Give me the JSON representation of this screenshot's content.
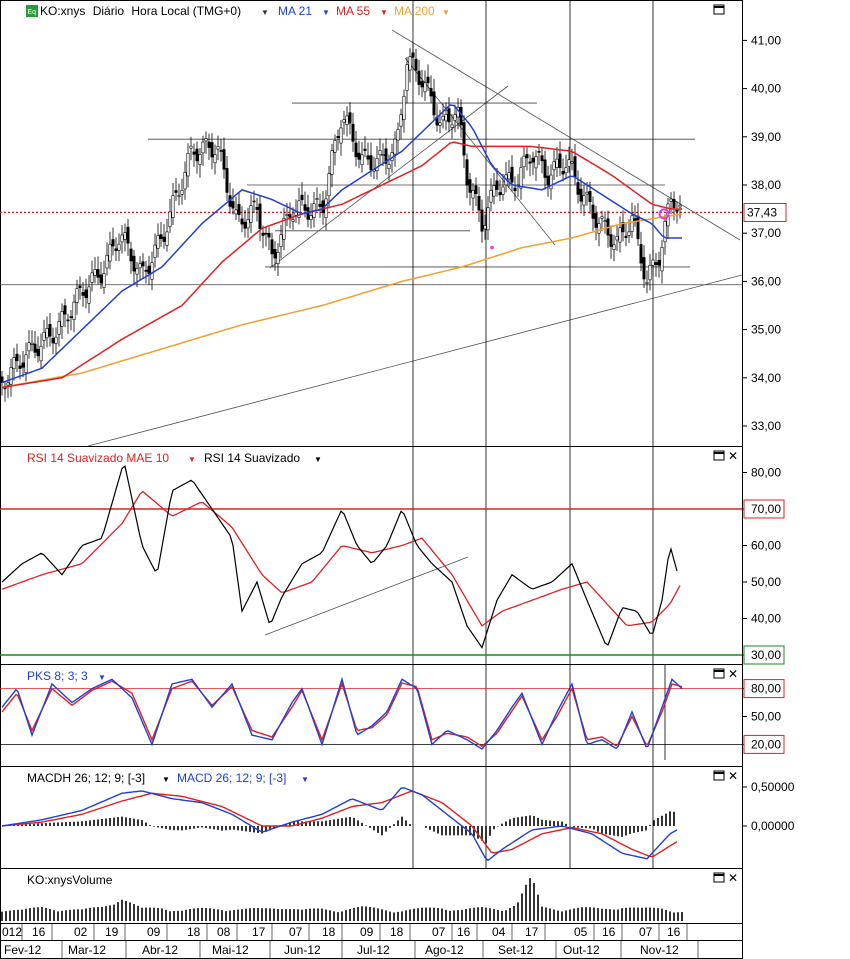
{
  "price_panel": {
    "symbol": "KO:xnys",
    "interval": "Diário",
    "timezone": "Hora Local (TMG+0)",
    "ma21": "MA 21",
    "ma55": "MA 55",
    "ma200": "MA 200",
    "last_price": "37,43",
    "y_ticks": [
      "41,00",
      "40,00",
      "39,00",
      "38,00",
      "37,00",
      "36,00",
      "35,00",
      "34,00",
      "33,00"
    ]
  },
  "rsi_panel": {
    "label_mae": "RSI 14 Suavizado MAE 10",
    "label_rsi": "RSI 14 Suavizado",
    "level_high": "70,00",
    "level_low": "30,00",
    "y_ticks": [
      "80,00",
      "70,00",
      "60,00",
      "50,00",
      "40,00",
      "30,00"
    ]
  },
  "pks_panel": {
    "label": "PKS 8; 3; 3",
    "level_high": "80,00",
    "level_mid": "50,00",
    "level_low": "20,00"
  },
  "macd_panel": {
    "label_hist": "MACDH 26; 12; 9; [-3]",
    "label_macd": "MACD 26; 12; 9; [-3]",
    "y_ticks": [
      "0,50000",
      "0,00000"
    ]
  },
  "volume_panel": {
    "label": "KO:xnysVolume"
  },
  "axis": {
    "days": [
      "012",
      "16",
      "02",
      "19",
      "09",
      "18",
      "08",
      "17",
      "07",
      "18",
      "09",
      "18",
      "07",
      "16",
      "04",
      "17",
      "05",
      "16",
      "07",
      "16"
    ],
    "months": [
      "Fev-12",
      "Mar-12",
      "Abr-12",
      "Mai-12",
      "Jun-12",
      "Jul-12",
      "Ago-12",
      "Set-12",
      "Out-12",
      "Nov-12"
    ]
  },
  "colors": {
    "ma21": "#1f3fd6",
    "ma55": "#e02020",
    "ma200": "#f0a030",
    "rsi": "#000000",
    "rsi_mae": "#e02020",
    "level_high": "#e02020",
    "level_low": "#1a8a1a"
  },
  "icons": {
    "window_icon": "maximize-icon",
    "close_icon": "close-icon",
    "dropdown_icon": "triangle-down-icon"
  },
  "chart_data": {
    "type": "line",
    "title": "",
    "x_range": [
      "Fev-12",
      "Nov-12"
    ],
    "price_range": [
      32.6,
      41.6
    ],
    "last_price": 37.43,
    "anchors": {
      "close": [
        [
          0,
          33.9
        ],
        [
          20,
          34.4
        ],
        [
          55,
          35.0
        ],
        [
          80,
          35.8
        ],
        [
          100,
          36.2
        ],
        [
          118,
          37.0
        ],
        [
          140,
          36.1
        ],
        [
          160,
          36.9
        ],
        [
          190,
          38.7
        ],
        [
          215,
          38.8
        ],
        [
          235,
          37.2
        ],
        [
          255,
          37.5
        ],
        [
          270,
          36.5
        ],
        [
          290,
          37.5
        ],
        [
          320,
          37.5
        ],
        [
          340,
          39.5
        ],
        [
          360,
          38.5
        ],
        [
          380,
          38.5
        ],
        [
          395,
          38.8
        ],
        [
          405,
          40.6
        ],
        [
          420,
          40.2
        ],
        [
          440,
          39.2
        ],
        [
          455,
          39.6
        ],
        [
          465,
          38.2
        ],
        [
          480,
          37.2
        ],
        [
          495,
          38.0
        ],
        [
          515,
          38.1
        ],
        [
          530,
          38.7
        ],
        [
          545,
          38.2
        ],
        [
          565,
          38.5
        ],
        [
          580,
          37.8
        ],
        [
          598,
          37.2
        ],
        [
          615,
          36.8
        ],
        [
          630,
          37.3
        ],
        [
          645,
          36.0
        ],
        [
          658,
          36.6
        ],
        [
          670,
          37.8
        ],
        [
          680,
          37.43
        ]
      ],
      "ma21": [
        [
          0,
          33.9
        ],
        [
          40,
          34.2
        ],
        [
          80,
          35.0
        ],
        [
          120,
          35.8
        ],
        [
          160,
          36.3
        ],
        [
          200,
          37.2
        ],
        [
          240,
          37.9
        ],
        [
          270,
          37.7
        ],
        [
          300,
          37.4
        ],
        [
          320,
          37.5
        ],
        [
          340,
          37.9
        ],
        [
          370,
          38.3
        ],
        [
          400,
          38.7
        ],
        [
          430,
          39.3
        ],
        [
          450,
          39.7
        ],
        [
          470,
          39.2
        ],
        [
          490,
          38.4
        ],
        [
          510,
          38.0
        ],
        [
          540,
          37.9
        ],
        [
          570,
          38.2
        ],
        [
          600,
          37.8
        ],
        [
          630,
          37.4
        ],
        [
          650,
          37.2
        ],
        [
          662,
          36.9
        ],
        [
          680,
          36.9
        ]
      ],
      "ma55": [
        [
          0,
          33.8
        ],
        [
          60,
          34.0
        ],
        [
          120,
          34.8
        ],
        [
          180,
          35.5
        ],
        [
          220,
          36.4
        ],
        [
          260,
          37.1
        ],
        [
          300,
          37.4
        ],
        [
          340,
          37.6
        ],
        [
          380,
          38.0
        ],
        [
          420,
          38.4
        ],
        [
          450,
          38.9
        ],
        [
          470,
          38.8
        ],
        [
          500,
          38.8
        ],
        [
          530,
          38.8
        ],
        [
          570,
          38.7
        ],
        [
          610,
          38.2
        ],
        [
          650,
          37.6
        ],
        [
          670,
          37.5
        ],
        [
          680,
          37.5
        ]
      ],
      "ma200": [
        [
          0,
          33.8
        ],
        [
          80,
          34.1
        ],
        [
          160,
          34.6
        ],
        [
          240,
          35.1
        ],
        [
          320,
          35.5
        ],
        [
          400,
          36.0
        ],
        [
          460,
          36.3
        ],
        [
          520,
          36.7
        ],
        [
          570,
          36.9
        ],
        [
          620,
          37.2
        ],
        [
          680,
          37.4
        ]
      ],
      "rsi": [
        [
          0,
          50
        ],
        [
          20,
          55
        ],
        [
          40,
          58
        ],
        [
          60,
          52
        ],
        [
          80,
          60
        ],
        [
          100,
          62
        ],
        [
          122,
          83
        ],
        [
          140,
          60
        ],
        [
          155,
          52
        ],
        [
          170,
          75
        ],
        [
          190,
          78
        ],
        [
          210,
          70
        ],
        [
          230,
          62
        ],
        [
          240,
          42
        ],
        [
          255,
          50
        ],
        [
          268,
          38
        ],
        [
          280,
          46
        ],
        [
          300,
          55
        ],
        [
          320,
          58
        ],
        [
          340,
          70
        ],
        [
          355,
          60
        ],
        [
          370,
          55
        ],
        [
          385,
          60
        ],
        [
          400,
          70
        ],
        [
          415,
          60
        ],
        [
          430,
          55
        ],
        [
          450,
          50
        ],
        [
          465,
          38
        ],
        [
          480,
          32
        ],
        [
          495,
          45
        ],
        [
          510,
          52
        ],
        [
          530,
          48
        ],
        [
          550,
          50
        ],
        [
          570,
          55
        ],
        [
          585,
          45
        ],
        [
          605,
          32
        ],
        [
          620,
          43
        ],
        [
          635,
          42
        ],
        [
          650,
          35
        ],
        [
          660,
          45
        ],
        [
          668,
          60
        ],
        [
          675,
          53
        ]
      ],
      "rsi_mae": [
        [
          0,
          48
        ],
        [
          40,
          52
        ],
        [
          80,
          55
        ],
        [
          120,
          66
        ],
        [
          140,
          75
        ],
        [
          170,
          68
        ],
        [
          200,
          72
        ],
        [
          230,
          65
        ],
        [
          260,
          52
        ],
        [
          280,
          47
        ],
        [
          310,
          50
        ],
        [
          340,
          60
        ],
        [
          370,
          58
        ],
        [
          400,
          60
        ],
        [
          420,
          62
        ],
        [
          450,
          52
        ],
        [
          480,
          38
        ],
        [
          500,
          42
        ],
        [
          530,
          45
        ],
        [
          560,
          48
        ],
        [
          585,
          50
        ],
        [
          605,
          44
        ],
        [
          625,
          38
        ],
        [
          650,
          39
        ],
        [
          668,
          44
        ],
        [
          678,
          49
        ]
      ],
      "macd": [
        [
          0,
          0.0
        ],
        [
          40,
          0.08
        ],
        [
          80,
          0.2
        ],
        [
          120,
          0.42
        ],
        [
          140,
          0.45
        ],
        [
          170,
          0.35
        ],
        [
          200,
          0.3
        ],
        [
          230,
          0.15
        ],
        [
          260,
          -0.08
        ],
        [
          290,
          0.05
        ],
        [
          320,
          0.15
        ],
        [
          350,
          0.35
        ],
        [
          380,
          0.2
        ],
        [
          400,
          0.5
        ],
        [
          420,
          0.4
        ],
        [
          450,
          0.1
        ],
        [
          470,
          -0.1
        ],
        [
          485,
          -0.45
        ],
        [
          500,
          -0.3
        ],
        [
          530,
          -0.05
        ],
        [
          560,
          0.0
        ],
        [
          590,
          -0.1
        ],
        [
          620,
          -0.35
        ],
        [
          645,
          -0.42
        ],
        [
          668,
          -0.1
        ],
        [
          675,
          -0.05
        ]
      ],
      "macd_signal": [
        [
          0,
          0.0
        ],
        [
          40,
          0.05
        ],
        [
          80,
          0.15
        ],
        [
          120,
          0.32
        ],
        [
          150,
          0.42
        ],
        [
          180,
          0.38
        ],
        [
          220,
          0.25
        ],
        [
          260,
          0.0
        ],
        [
          290,
          0.0
        ],
        [
          320,
          0.1
        ],
        [
          350,
          0.25
        ],
        [
          380,
          0.3
        ],
        [
          410,
          0.45
        ],
        [
          440,
          0.3
        ],
        [
          470,
          0.0
        ],
        [
          490,
          -0.35
        ],
        [
          510,
          -0.3
        ],
        [
          540,
          -0.1
        ],
        [
          570,
          -0.02
        ],
        [
          600,
          -0.1
        ],
        [
          630,
          -0.3
        ],
        [
          650,
          -0.4
        ],
        [
          675,
          -0.2
        ]
      ],
      "pks_k": [
        [
          0,
          60
        ],
        [
          15,
          80
        ],
        [
          30,
          30
        ],
        [
          50,
          85
        ],
        [
          70,
          65
        ],
        [
          90,
          80
        ],
        [
          110,
          90
        ],
        [
          130,
          70
        ],
        [
          150,
          20
        ],
        [
          170,
          85
        ],
        [
          190,
          90
        ],
        [
          210,
          60
        ],
        [
          230,
          85
        ],
        [
          250,
          30
        ],
        [
          270,
          25
        ],
        [
          290,
          65
        ],
        [
          300,
          80
        ],
        [
          320,
          20
        ],
        [
          340,
          90
        ],
        [
          355,
          30
        ],
        [
          370,
          40
        ],
        [
          385,
          55
        ],
        [
          400,
          90
        ],
        [
          415,
          80
        ],
        [
          430,
          20
        ],
        [
          445,
          35
        ],
        [
          465,
          25
        ],
        [
          480,
          15
        ],
        [
          495,
          35
        ],
        [
          510,
          60
        ],
        [
          520,
          75
        ],
        [
          540,
          20
        ],
        [
          555,
          55
        ],
        [
          570,
          85
        ],
        [
          585,
          20
        ],
        [
          600,
          25
        ],
        [
          615,
          15
        ],
        [
          630,
          55
        ],
        [
          645,
          15
        ],
        [
          660,
          60
        ],
        [
          670,
          90
        ],
        [
          680,
          80
        ]
      ],
      "pks_d": [
        [
          0,
          55
        ],
        [
          15,
          75
        ],
        [
          30,
          35
        ],
        [
          50,
          80
        ],
        [
          70,
          62
        ],
        [
          90,
          78
        ],
        [
          110,
          88
        ],
        [
          130,
          75
        ],
        [
          150,
          25
        ],
        [
          170,
          80
        ],
        [
          190,
          88
        ],
        [
          210,
          62
        ],
        [
          230,
          82
        ],
        [
          250,
          35
        ],
        [
          270,
          28
        ],
        [
          290,
          60
        ],
        [
          300,
          78
        ],
        [
          320,
          25
        ],
        [
          340,
          85
        ],
        [
          355,
          35
        ],
        [
          370,
          38
        ],
        [
          385,
          52
        ],
        [
          400,
          86
        ],
        [
          415,
          82
        ],
        [
          430,
          25
        ],
        [
          445,
          32
        ],
        [
          465,
          28
        ],
        [
          480,
          18
        ],
        [
          495,
          32
        ],
        [
          510,
          56
        ],
        [
          520,
          72
        ],
        [
          540,
          25
        ],
        [
          555,
          50
        ],
        [
          570,
          80
        ],
        [
          585,
          25
        ],
        [
          600,
          28
        ],
        [
          615,
          18
        ],
        [
          630,
          50
        ],
        [
          645,
          18
        ],
        [
          660,
          55
        ],
        [
          670,
          85
        ],
        [
          680,
          82
        ]
      ],
      "volume": [
        [
          0,
          12
        ],
        [
          20,
          10
        ],
        [
          40,
          14
        ],
        [
          60,
          12
        ],
        [
          80,
          10
        ],
        [
          100,
          15
        ],
        [
          120,
          25
        ],
        [
          140,
          12
        ],
        [
          160,
          14
        ],
        [
          180,
          10
        ],
        [
          200,
          12
        ],
        [
          220,
          13
        ],
        [
          240,
          11
        ],
        [
          260,
          12
        ],
        [
          280,
          15
        ],
        [
          300,
          10
        ],
        [
          320,
          12
        ],
        [
          340,
          11
        ],
        [
          360,
          14
        ],
        [
          380,
          12
        ],
        [
          400,
          10
        ],
        [
          420,
          12
        ],
        [
          440,
          14
        ],
        [
          460,
          11
        ],
        [
          480,
          13
        ],
        [
          500,
          12
        ],
        [
          515,
          18
        ],
        [
          529,
          55
        ],
        [
          540,
          14
        ],
        [
          560,
          12
        ],
        [
          580,
          13
        ],
        [
          600,
          12
        ],
        [
          620,
          15
        ],
        [
          640,
          12
        ],
        [
          660,
          13
        ],
        [
          680,
          9
        ]
      ]
    }
  }
}
